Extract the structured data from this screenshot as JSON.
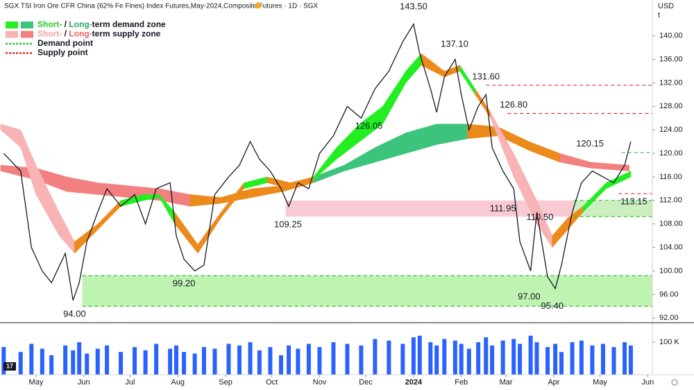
{
  "chart_data": {
    "type": "line",
    "title": "SGX TSI Iron Ore CFR China (62% Fe Fines) Index Futures,May-2024,Composite Futures · 1D · SGX",
    "currency": "USD",
    "unit": "t",
    "xlim": [
      -23.4,
      400
    ],
    "xticks": [
      {
        "value": 0,
        "label": "May"
      },
      {
        "value": 31,
        "label": "Jun"
      },
      {
        "value": 61,
        "label": "Jul"
      },
      {
        "value": 92,
        "label": "Aug"
      },
      {
        "value": 123,
        "label": "Sep"
      },
      {
        "value": 153,
        "label": "Oct"
      },
      {
        "value": 184,
        "label": "Nov"
      },
      {
        "value": 214,
        "label": "Dec"
      },
      {
        "value": 245,
        "label": "2024"
      },
      {
        "value": 276,
        "label": "Feb"
      },
      {
        "value": 305,
        "label": "Mar"
      },
      {
        "value": 336,
        "label": "Apr"
      },
      {
        "value": 366,
        "label": "May"
      },
      {
        "value": 397,
        "label": "Jun"
      }
    ],
    "ylim": [
      91.2,
      146.1
    ],
    "yticks": [
      {
        "value": 92,
        "label": "92.00"
      },
      {
        "value": 96,
        "label": "96.00"
      },
      {
        "value": 100,
        "label": "100.00"
      },
      {
        "value": 104,
        "label": "104.00"
      },
      {
        "value": 108,
        "label": "108.00"
      },
      {
        "value": 112,
        "label": "112.00"
      },
      {
        "value": 116,
        "label": "116.00"
      },
      {
        "value": 120,
        "label": "120.00"
      },
      {
        "value": 124,
        "label": "124.00"
      },
      {
        "value": 128,
        "label": "128.00"
      },
      {
        "value": 132,
        "label": "132.00"
      },
      {
        "value": 136,
        "label": "136.00"
      },
      {
        "value": 140,
        "label": "140.00"
      }
    ],
    "vlim": [
      0,
      160000
    ],
    "vticks": [
      {
        "value": 100000,
        "label": "100 K"
      }
    ],
    "x": [
      -21,
      -10,
      -3,
      4,
      10,
      19,
      24,
      28,
      33,
      40,
      46,
      55,
      64,
      71,
      78,
      87,
      91,
      96,
      103,
      109,
      116,
      125,
      132,
      139,
      145,
      152,
      159,
      164,
      170,
      177,
      184,
      193,
      202,
      211,
      220,
      229,
      238,
      245,
      249,
      256,
      260,
      265,
      272,
      276,
      281,
      287,
      292,
      296,
      303,
      310,
      314,
      321,
      325,
      332,
      337,
      341,
      348,
      354,
      361,
      368,
      375,
      382,
      386
    ],
    "series": [
      {
        "name": "Price",
        "color": "#131722",
        "values": [
          120,
          117,
          104,
          100,
          98,
          103,
          95,
          98,
          105,
          110,
          114,
          111,
          113,
          108,
          114,
          115,
          106,
          102,
          100,
          101,
          113,
          116,
          118,
          122,
          119,
          117,
          114,
          111,
          115,
          114,
          120,
          123,
          128,
          126,
          131,
          134,
          139,
          142,
          137,
          131,
          127,
          133,
          136,
          130,
          124,
          128,
          130,
          121,
          117,
          114,
          105,
          100,
          110,
          99,
          97,
          101,
          110,
          115,
          117,
          116,
          115,
          118,
          122
        ]
      },
      {
        "name": "Volume",
        "color": "#2962ff",
        "values": [
          85000,
          70000,
          95000,
          80000,
          60000,
          90000,
          75000,
          100000,
          65000,
          80000,
          90000,
          70000,
          85000,
          75000,
          95000,
          80000,
          90000,
          70000,
          65000,
          85000,
          80000,
          95000,
          90000,
          100000,
          75000,
          85000,
          60000,
          90000,
          80000,
          95000,
          85000,
          100000,
          95000,
          90000,
          110000,
          105000,
          95000,
          115000,
          120000,
          100000,
          90000,
          110000,
          105000,
          95000,
          80000,
          100000,
          115000,
          90000,
          105000,
          110000,
          95000,
          120000,
          100000,
          85000,
          95000,
          70000,
          100000,
          105000,
          90000,
          95000,
          85000,
          100000,
          90000
        ]
      }
    ],
    "bands": [
      {
        "name": "Long-term",
        "x": [
          -23,
          0,
          20,
          40,
          60,
          80,
          100,
          120,
          140,
          160,
          180,
          200,
          220,
          240,
          260,
          280,
          300,
          320,
          340,
          360,
          385
        ],
        "upper": [
          118,
          117.5,
          116,
          115,
          114.5,
          114,
          113,
          112.5,
          114,
          114.5,
          116,
          118,
          121,
          123.5,
          125,
          125,
          124.5,
          122,
          120,
          118.5,
          118
        ],
        "lower": [
          117,
          115.5,
          113.5,
          113,
          112.5,
          112,
          111,
          111.5,
          112.5,
          113.5,
          115,
          117,
          118.5,
          120,
          121.5,
          122.5,
          123,
          120.5,
          118.5,
          117.5,
          117
        ],
        "colors": [
          "#f28080",
          "#f28080",
          "#f28080",
          "#f28080",
          "#f28080",
          "#f28080",
          "#ec8a1c",
          "#ec8a1c",
          "#ec8a1c",
          "#ec8a1c",
          "#3cc47c",
          "#3cc47c",
          "#3cc47c",
          "#3cc47c",
          "#3cc47c",
          "#ec8a1c",
          "#ec8a1c",
          "#ec8a1c",
          "#f28080",
          "#f28080"
        ]
      },
      {
        "name": "Short-term",
        "x": [
          -23,
          -10,
          0,
          15,
          25,
          40,
          55,
          70,
          80,
          90,
          105,
          120,
          135,
          150,
          165,
          180,
          195,
          210,
          225,
          240,
          250,
          265,
          275,
          285,
          295,
          310,
          325,
          335,
          345,
          355,
          370,
          386
        ],
        "upper": [
          125,
          124,
          118,
          110,
          105,
          108,
          112,
          113,
          113,
          110,
          104.5,
          110,
          115,
          116,
          115,
          116,
          121,
          125,
          128,
          134,
          137,
          134,
          135,
          131,
          127,
          120,
          112,
          106,
          109,
          111,
          115,
          117
        ],
        "lower": [
          124,
          121,
          113,
          106,
          103,
          107,
          111,
          112,
          112.5,
          108,
          103,
          109,
          114,
          115,
          114,
          115.5,
          119,
          122,
          125,
          132,
          135,
          133,
          134,
          130,
          126,
          116,
          108,
          104,
          107,
          110,
          114,
          116
        ],
        "colors": [
          "#f8b4b4",
          "#f8b4b4",
          "#f8b4b4",
          "#f8b4b4",
          "#ec8a1c",
          "#ec8a1c",
          "#22ee22",
          "#22ee22",
          "#22ee22",
          "#ec8a1c",
          "#ec8a1c",
          "#ec8a1c",
          "#22ee22",
          "#ec8a1c",
          "#ec8a1c",
          "#22ee22",
          "#22ee22",
          "#22ee22",
          "#22ee22",
          "#22ee22",
          "#ec8a1c",
          "#ec8a1c",
          "#22ee22",
          "#ec8a1c",
          "#f8b4b4",
          "#f8b4b4",
          "#f8b4b4",
          "#ec8a1c",
          "#ec8a1c",
          "#22ee22",
          "#22ee22"
        ]
      }
    ],
    "zones": [
      {
        "from": 30,
        "low": 94.0,
        "high": 99.2,
        "color": "#b8f2a8"
      },
      {
        "from": 162,
        "low": 109.25,
        "high": 112,
        "color": "#f8c4cc"
      },
      {
        "from": 349,
        "low": 109.25,
        "high": 112,
        "color": "#c6f3bc"
      }
    ],
    "levels": [
      {
        "y": 131.6,
        "from": 292,
        "color": "#e03030"
      },
      {
        "y": 126.8,
        "from": 306,
        "color": "#e03030"
      },
      {
        "y": 120.15,
        "from": 380,
        "color": "#30c030"
      },
      {
        "y": 113.15,
        "from": 378,
        "color": "#e03030"
      },
      {
        "y": 112,
        "from": 349,
        "color": "#30c030"
      },
      {
        "y": 109.25,
        "from": 349,
        "color": "#30c030"
      },
      {
        "y": 99.2,
        "from": 30,
        "color": "#30c030"
      },
      {
        "y": 94.0,
        "from": 30,
        "color": "#30c030"
      }
    ],
    "annotations": [
      {
        "x": 245,
        "value": 143.5,
        "label": "143.50",
        "position": "above"
      },
      {
        "x": 271.6,
        "value": 137.1,
        "label": "137.10",
        "position": "above"
      },
      {
        "x": 292,
        "value": 131.6,
        "label": "131.60",
        "position": "above"
      },
      {
        "x": 310,
        "value": 126.8,
        "label": "126.80",
        "position": "above"
      },
      {
        "x": 216,
        "value": 126.05,
        "label": "126.05",
        "position": "below"
      },
      {
        "x": 359.5,
        "value": 120.15,
        "label": "120.15",
        "position": "above"
      },
      {
        "x": 388,
        "value": 113.15,
        "label": "113.15",
        "position": "below"
      },
      {
        "x": 303,
        "value": 111.95,
        "label": "111.95",
        "position": "below"
      },
      {
        "x": 327,
        "value": 110.5,
        "label": "110.50",
        "position": "below"
      },
      {
        "x": 163.5,
        "value": 109.25,
        "label": "109.25",
        "position": "below"
      },
      {
        "x": 96,
        "value": 99.2,
        "label": "99.20",
        "position": "below"
      },
      {
        "x": 320,
        "value": 97.0,
        "label": "97.00",
        "position": "below"
      },
      {
        "x": 335,
        "value": 95.4,
        "label": "95.40",
        "position": "below"
      },
      {
        "x": 25,
        "value": 94.0,
        "label": "94.00",
        "position": "below"
      }
    ],
    "legend": [
      {
        "swatches": [
          "#22ee22",
          "#3cc47c"
        ],
        "style": "box",
        "parts": [
          {
            "text": "Short-",
            "color": "#22cc22"
          },
          {
            "text": " / ",
            "color": "#131722"
          },
          {
            "text": "Long-",
            "color": "#2aa860"
          },
          {
            "text": "term demand zone",
            "color": "#131722"
          }
        ]
      },
      {
        "swatches": [
          "#f8b4b4",
          "#f28080"
        ],
        "style": "box",
        "parts": [
          {
            "text": "Short-",
            "color": "#f4a0a0"
          },
          {
            "text": " / ",
            "color": "#131722"
          },
          {
            "text": "Long-",
            "color": "#e86060"
          },
          {
            "text": "term supply zone",
            "color": "#131722"
          }
        ]
      },
      {
        "swatches": [
          "#30c030"
        ],
        "style": "dash",
        "parts": [
          {
            "text": "Demand point",
            "color": "#131722"
          }
        ]
      },
      {
        "swatches": [
          "#e03030"
        ],
        "style": "dash",
        "parts": [
          {
            "text": "Supply point",
            "color": "#131722"
          }
        ]
      }
    ]
  }
}
